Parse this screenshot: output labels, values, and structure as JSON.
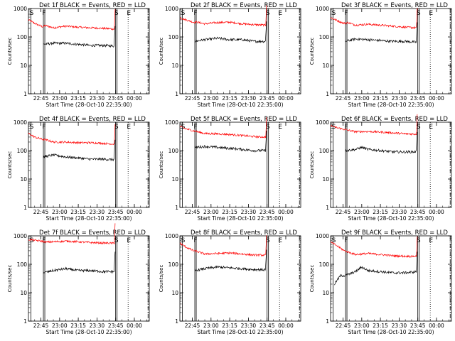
{
  "chart_data": {
    "type": "line",
    "layout": "3x3 grid of panels",
    "yscale": "log",
    "ylim": [
      1,
      1000
    ],
    "y_ticks": [
      "1",
      "10",
      "100",
      "1000"
    ],
    "ylabel": "Counts/sec",
    "xlabel": "Start Time (28-Oct-10 22:35:00)",
    "x_ticks": [
      "22:45",
      "23:00",
      "23:15",
      "23:30",
      "23:45",
      "00:00"
    ],
    "x_tick_minutes": [
      10,
      25,
      40,
      55,
      70,
      85
    ],
    "x_range_minutes": [
      0,
      97
    ],
    "markers": [
      {
        "label": "S",
        "minute": 2,
        "style": "solid"
      },
      {
        "label": "F",
        "minute": 12,
        "style": "solid-double"
      },
      {
        "label": "S",
        "minute": 70,
        "style": "solid-double"
      },
      {
        "label": "E",
        "minute": 80,
        "style": "dotted"
      },
      {
        "label": "",
        "minute": 96,
        "style": "dash-dot"
      }
    ],
    "series_colors": {
      "events": "#000000",
      "lld": "#ff0000"
    },
    "panels": [
      {
        "title": "Det 1f BLACK = Events, RED = LLD",
        "lld": [
          {
            "x": 0,
            "y": 400
          },
          {
            "x": 5,
            "y": 300
          },
          {
            "x": 11,
            "y": 230
          },
          {
            "x": 14,
            "y": 250
          },
          {
            "x": 20,
            "y": 210
          },
          {
            "x": 30,
            "y": 240
          },
          {
            "x": 40,
            "y": 220
          },
          {
            "x": 50,
            "y": 210
          },
          {
            "x": 60,
            "y": 200
          },
          {
            "x": 69,
            "y": 190
          }
        ],
        "events": [
          {
            "x": 12,
            "y": 55
          },
          {
            "x": 20,
            "y": 60
          },
          {
            "x": 30,
            "y": 60
          },
          {
            "x": 40,
            "y": 55
          },
          {
            "x": 50,
            "y": 50
          },
          {
            "x": 60,
            "y": 50
          },
          {
            "x": 69,
            "y": 48
          }
        ]
      },
      {
        "title": "Det 2f BLACK = Events, RED = LLD",
        "lld": [
          {
            "x": 0,
            "y": 470
          },
          {
            "x": 5,
            "y": 400
          },
          {
            "x": 11,
            "y": 330
          },
          {
            "x": 14,
            "y": 330
          },
          {
            "x": 20,
            "y": 290
          },
          {
            "x": 30,
            "y": 320
          },
          {
            "x": 40,
            "y": 330
          },
          {
            "x": 50,
            "y": 290
          },
          {
            "x": 60,
            "y": 270
          },
          {
            "x": 69,
            "y": 260
          }
        ],
        "events": [
          {
            "x": 12,
            "y": 70
          },
          {
            "x": 20,
            "y": 80
          },
          {
            "x": 30,
            "y": 90
          },
          {
            "x": 40,
            "y": 80
          },
          {
            "x": 50,
            "y": 80
          },
          {
            "x": 60,
            "y": 70
          },
          {
            "x": 69,
            "y": 70
          }
        ]
      },
      {
        "title": "Det 3f BLACK = Events, RED = LLD",
        "lld": [
          {
            "x": 0,
            "y": 480
          },
          {
            "x": 5,
            "y": 380
          },
          {
            "x": 11,
            "y": 300
          },
          {
            "x": 14,
            "y": 320
          },
          {
            "x": 20,
            "y": 260
          },
          {
            "x": 30,
            "y": 280
          },
          {
            "x": 40,
            "y": 260
          },
          {
            "x": 50,
            "y": 240
          },
          {
            "x": 60,
            "y": 220
          },
          {
            "x": 69,
            "y": 210
          }
        ],
        "events": [
          {
            "x": 12,
            "y": 70
          },
          {
            "x": 20,
            "y": 85
          },
          {
            "x": 30,
            "y": 80
          },
          {
            "x": 40,
            "y": 75
          },
          {
            "x": 50,
            "y": 70
          },
          {
            "x": 60,
            "y": 70
          },
          {
            "x": 69,
            "y": 65
          }
        ]
      },
      {
        "title": "Det 4f BLACK = Events, RED = LLD",
        "lld": [
          {
            "x": 0,
            "y": 400
          },
          {
            "x": 5,
            "y": 300
          },
          {
            "x": 11,
            "y": 250
          },
          {
            "x": 14,
            "y": 240
          },
          {
            "x": 20,
            "y": 200
          },
          {
            "x": 30,
            "y": 200
          },
          {
            "x": 40,
            "y": 190
          },
          {
            "x": 50,
            "y": 190
          },
          {
            "x": 60,
            "y": 180
          },
          {
            "x": 69,
            "y": 170
          }
        ],
        "events": [
          {
            "x": 12,
            "y": 60
          },
          {
            "x": 20,
            "y": 70
          },
          {
            "x": 30,
            "y": 60
          },
          {
            "x": 40,
            "y": 55
          },
          {
            "x": 50,
            "y": 50
          },
          {
            "x": 60,
            "y": 50
          },
          {
            "x": 69,
            "y": 48
          }
        ]
      },
      {
        "title": "Det 5f BLACK = Events, RED = LLD",
        "lld": [
          {
            "x": 0,
            "y": 700
          },
          {
            "x": 5,
            "y": 580
          },
          {
            "x": 11,
            "y": 500
          },
          {
            "x": 14,
            "y": 460
          },
          {
            "x": 20,
            "y": 400
          },
          {
            "x": 30,
            "y": 390
          },
          {
            "x": 40,
            "y": 370
          },
          {
            "x": 50,
            "y": 340
          },
          {
            "x": 60,
            "y": 310
          },
          {
            "x": 69,
            "y": 300
          }
        ],
        "events": [
          {
            "x": 12,
            "y": 130
          },
          {
            "x": 20,
            "y": 140
          },
          {
            "x": 30,
            "y": 130
          },
          {
            "x": 40,
            "y": 120
          },
          {
            "x": 50,
            "y": 110
          },
          {
            "x": 60,
            "y": 100
          },
          {
            "x": 69,
            "y": 100
          }
        ]
      },
      {
        "title": "Det 6f BLACK = Events, RED = LLD",
        "lld": [
          {
            "x": 0,
            "y": 750
          },
          {
            "x": 5,
            "y": 640
          },
          {
            "x": 11,
            "y": 560
          },
          {
            "x": 14,
            "y": 520
          },
          {
            "x": 20,
            "y": 460
          },
          {
            "x": 30,
            "y": 470
          },
          {
            "x": 40,
            "y": 450
          },
          {
            "x": 50,
            "y": 420
          },
          {
            "x": 60,
            "y": 390
          },
          {
            "x": 69,
            "y": 380
          }
        ],
        "events": [
          {
            "x": 12,
            "y": 100
          },
          {
            "x": 20,
            "y": 110
          },
          {
            "x": 25,
            "y": 130
          },
          {
            "x": 30,
            "y": 110
          },
          {
            "x": 40,
            "y": 100
          },
          {
            "x": 50,
            "y": 90
          },
          {
            "x": 60,
            "y": 90
          },
          {
            "x": 69,
            "y": 90
          }
        ]
      },
      {
        "title": "Det 7f BLACK = Events, RED = LLD",
        "lld": [
          {
            "x": 0,
            "y": 750
          },
          {
            "x": 5,
            "y": 700
          },
          {
            "x": 11,
            "y": 650
          },
          {
            "x": 14,
            "y": 600
          },
          {
            "x": 20,
            "y": 620
          },
          {
            "x": 30,
            "y": 650
          },
          {
            "x": 40,
            "y": 620
          },
          {
            "x": 50,
            "y": 580
          },
          {
            "x": 60,
            "y": 560
          },
          {
            "x": 69,
            "y": 550
          }
        ],
        "events": [
          {
            "x": 12,
            "y": 50
          },
          {
            "x": 20,
            "y": 60
          },
          {
            "x": 30,
            "y": 70
          },
          {
            "x": 40,
            "y": 60
          },
          {
            "x": 50,
            "y": 60
          },
          {
            "x": 60,
            "y": 55
          },
          {
            "x": 69,
            "y": 55
          }
        ]
      },
      {
        "title": "Det 8f BLACK = Events, RED = LLD",
        "lld": [
          {
            "x": 0,
            "y": 550
          },
          {
            "x": 5,
            "y": 400
          },
          {
            "x": 11,
            "y": 300
          },
          {
            "x": 14,
            "y": 280
          },
          {
            "x": 20,
            "y": 230
          },
          {
            "x": 30,
            "y": 240
          },
          {
            "x": 40,
            "y": 250
          },
          {
            "x": 50,
            "y": 230
          },
          {
            "x": 60,
            "y": 210
          },
          {
            "x": 69,
            "y": 210
          }
        ],
        "events": [
          {
            "x": 12,
            "y": 60
          },
          {
            "x": 20,
            "y": 70
          },
          {
            "x": 30,
            "y": 80
          },
          {
            "x": 40,
            "y": 75
          },
          {
            "x": 50,
            "y": 70
          },
          {
            "x": 60,
            "y": 65
          },
          {
            "x": 69,
            "y": 65
          }
        ]
      },
      {
        "title": "Det 9f BLACK = Events, RED = LLD",
        "lld": [
          {
            "x": 0,
            "y": 600
          },
          {
            "x": 5,
            "y": 450
          },
          {
            "x": 11,
            "y": 300
          },
          {
            "x": 14,
            "y": 270
          },
          {
            "x": 20,
            "y": 220
          },
          {
            "x": 30,
            "y": 240
          },
          {
            "x": 40,
            "y": 220
          },
          {
            "x": 50,
            "y": 200
          },
          {
            "x": 60,
            "y": 190
          },
          {
            "x": 69,
            "y": 190
          }
        ],
        "events": [
          {
            "x": 3,
            "y": 20
          },
          {
            "x": 8,
            "y": 40
          },
          {
            "x": 12,
            "y": 40
          },
          {
            "x": 20,
            "y": 55
          },
          {
            "x": 25,
            "y": 80
          },
          {
            "x": 30,
            "y": 60
          },
          {
            "x": 40,
            "y": 55
          },
          {
            "x": 50,
            "y": 50
          },
          {
            "x": 60,
            "y": 50
          },
          {
            "x": 69,
            "y": 55
          }
        ]
      }
    ]
  }
}
